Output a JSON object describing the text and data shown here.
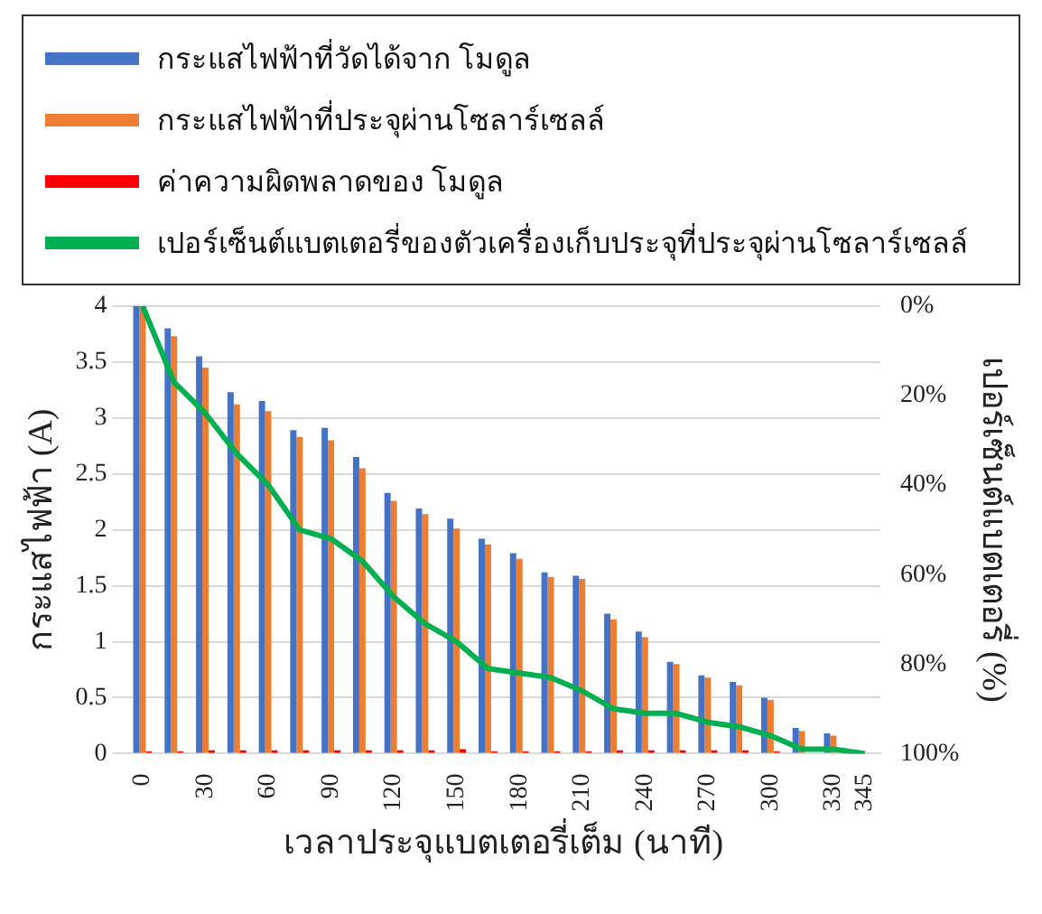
{
  "chart_data": {
    "type": "bar",
    "xlabel": "เวลาประจุแบตเตอรี่เต็ม (นาที)",
    "ylabel": "กระแสไฟฟ้า (A)",
    "y2label": "เปอร์เซ็นต์แบตเตอรี่ (%)",
    "categories": [
      "0",
      null,
      "30",
      null,
      "60",
      null,
      "90",
      null,
      "120",
      null,
      "150",
      null,
      "180",
      null,
      "210",
      null,
      "240",
      null,
      "270",
      null,
      "300",
      null,
      "330",
      "345"
    ],
    "series": [
      {
        "name": "กระแสไฟฟ้าที่วัดได้จาก โมดูล",
        "color": "#4472c4",
        "values": [
          4.0,
          3.8,
          3.55,
          3.23,
          3.15,
          2.89,
          2.91,
          2.65,
          2.33,
          2.19,
          2.1,
          1.92,
          1.79,
          1.62,
          1.59,
          1.25,
          1.09,
          0.82,
          0.7,
          0.64,
          0.5,
          0.23,
          0.18,
          null
        ]
      },
      {
        "name": "กระแสไฟฟ้าที่ประจุผ่านโซลาร์เซลล์",
        "color": "#ed7d31",
        "values": [
          4.0,
          3.73,
          3.45,
          3.12,
          3.06,
          2.83,
          2.8,
          2.55,
          2.26,
          2.14,
          2.01,
          1.87,
          1.74,
          1.58,
          1.56,
          1.2,
          1.04,
          0.8,
          0.68,
          0.61,
          0.48,
          0.2,
          0.16,
          null
        ]
      },
      {
        "name": "ค่าความผิดพลาดของ โมดูล",
        "color": "#ff0000",
        "values": [
          0.02,
          0.02,
          0.03,
          0.03,
          0.03,
          0.03,
          0.03,
          0.03,
          0.03,
          0.03,
          0.04,
          0.02,
          0.02,
          0.02,
          0.02,
          0.03,
          0.03,
          0.03,
          0.03,
          0.03,
          0.02,
          null,
          null,
          null
        ]
      },
      {
        "name": "เปอร์เซ็นต์แบตเตอรี่ของตัวเครื่องเก็บประจุที่ประจุผ่านโซลาร์เซลล์",
        "type": "line",
        "axis": "y2",
        "color": "#00b050",
        "values": [
          0,
          17,
          24,
          33,
          40,
          50,
          52,
          57,
          65,
          71,
          75,
          81,
          82,
          83,
          86,
          90,
          91,
          91,
          93,
          94,
          96,
          99,
          99,
          100
        ]
      }
    ],
    "ylim": [
      0,
      4
    ],
    "yticks": [
      0,
      0.5,
      1,
      1.5,
      2,
      2.5,
      3,
      3.5,
      4
    ],
    "y2lim": [
      100,
      0
    ],
    "y2ticks": [
      {
        "value": 0,
        "label": "0%"
      },
      {
        "value": 20,
        "label": "20%"
      },
      {
        "value": 40,
        "label": "40%"
      },
      {
        "value": 60,
        "label": "60%"
      },
      {
        "value": 80,
        "label": "80%"
      },
      {
        "value": 100,
        "label": "100%"
      }
    ],
    "grid": "y",
    "legend": "top",
    "marker": "none",
    "line_style": "solid"
  }
}
